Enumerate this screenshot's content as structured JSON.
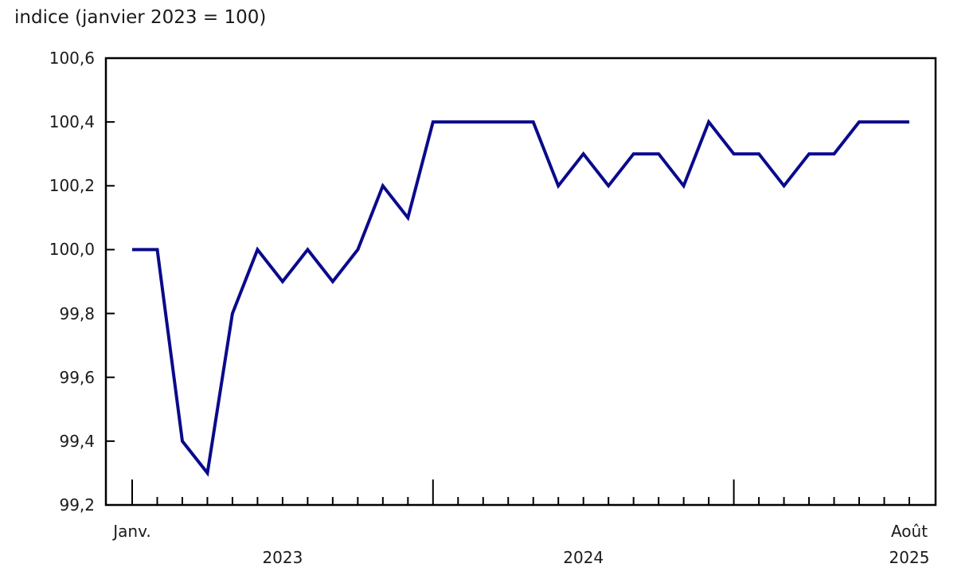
{
  "title": "indice (janvier 2023 = 100)",
  "chart_data": {
    "type": "line",
    "title": "indice (janvier 2023 = 100)",
    "series_name": "indice",
    "x": [
      "2023-01",
      "2023-02",
      "2023-03",
      "2023-04",
      "2023-05",
      "2023-06",
      "2023-07",
      "2023-08",
      "2023-09",
      "2023-10",
      "2023-11",
      "2023-12",
      "2024-01",
      "2024-02",
      "2024-03",
      "2024-04",
      "2024-05",
      "2024-06",
      "2024-07",
      "2024-08",
      "2024-09",
      "2024-10",
      "2024-11",
      "2024-12",
      "2025-01",
      "2025-02",
      "2025-03",
      "2025-04",
      "2025-05",
      "2025-06",
      "2025-07",
      "2025-08"
    ],
    "values": [
      100.0,
      100.0,
      99.4,
      99.3,
      99.8,
      100.0,
      99.9,
      100.0,
      99.9,
      100.0,
      100.2,
      100.1,
      100.4,
      100.4,
      100.4,
      100.4,
      100.4,
      100.2,
      100.3,
      100.2,
      100.3,
      100.3,
      100.2,
      100.4,
      100.3,
      100.3,
      100.2,
      100.3,
      100.3,
      100.4,
      100.4,
      100.4
    ],
    "ylim": [
      99.2,
      100.6
    ],
    "y_ticks": [
      {
        "value": 100.6,
        "label": "100,6"
      },
      {
        "value": 100.4,
        "label": "100,4"
      },
      {
        "value": 100.2,
        "label": "100,2"
      },
      {
        "value": 100.0,
        "label": "100,0"
      },
      {
        "value": 99.8,
        "label": "99,8"
      },
      {
        "value": 99.6,
        "label": "99,6"
      },
      {
        "value": 99.4,
        "label": "99,4"
      },
      {
        "value": 99.2,
        "label": "99,2"
      }
    ],
    "x_axis": {
      "endpoint_labels": [
        {
          "text": "Janv.",
          "month_index": 0
        },
        {
          "text": "Août",
          "month_index": 31
        }
      ],
      "year_labels": [
        {
          "text": "2023",
          "month_index": 6
        },
        {
          "text": "2024",
          "month_index": 18
        },
        {
          "text": "2025",
          "month_index": 31
        }
      ]
    },
    "grid": false,
    "legend": false,
    "line_color": "#0a0a8c",
    "axis_color": "#000000",
    "text_color": "#1a1a1a"
  }
}
